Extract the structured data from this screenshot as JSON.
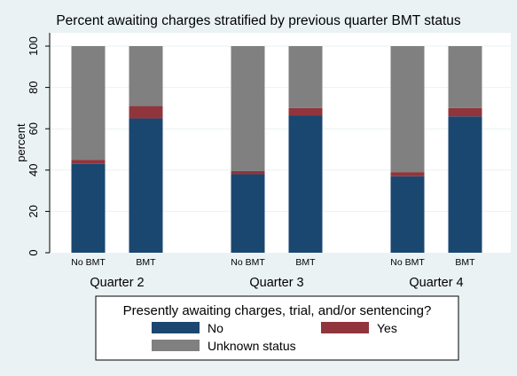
{
  "chart_data": {
    "type": "bar",
    "stacked": true,
    "title": "Percent awaiting charges stratified by previous quarter BMT status",
    "ylabel": "percent",
    "xlabel": "",
    "ylim": [
      0,
      100
    ],
    "yticks": [
      0,
      20,
      40,
      60,
      80,
      100
    ],
    "groups": [
      {
        "label": "Quarter 2",
        "categories": [
          "No BMT",
          "BMT"
        ]
      },
      {
        "label": "Quarter 3",
        "categories": [
          "No BMT",
          "BMT"
        ]
      },
      {
        "label": "Quarter 4",
        "categories": [
          "No BMT",
          "BMT"
        ]
      }
    ],
    "categories": [
      "Quarter 2 No BMT",
      "Quarter 2 BMT",
      "Quarter 3 No BMT",
      "Quarter 3 BMT",
      "Quarter 4 No BMT",
      "Quarter 4 BMT"
    ],
    "series": [
      {
        "name": "No",
        "color": "#1a476f",
        "values": [
          43,
          65,
          38,
          66.5,
          37,
          66
        ]
      },
      {
        "name": "Yes",
        "color": "#90353b",
        "values": [
          2,
          6,
          1.5,
          3.5,
          2,
          4
        ]
      },
      {
        "name": "Unknown status",
        "color": "#808080",
        "values": [
          55,
          29,
          60.5,
          30,
          61,
          30
        ]
      }
    ],
    "legend": {
      "title": "Presently awaiting charges, trial, and/or sentencing?",
      "placement": "bottom"
    },
    "grid": true
  }
}
